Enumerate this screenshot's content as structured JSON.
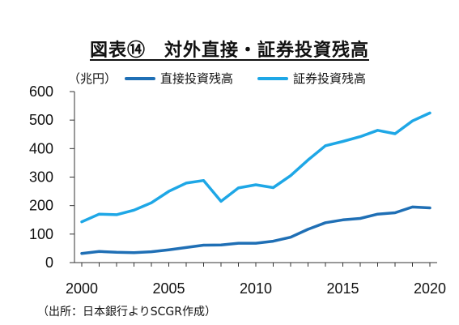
{
  "chart_data": {
    "type": "line",
    "title": "図表⑭　対外直接・証券投資残高",
    "unit_label": "（兆円）",
    "source": "（出所：日本銀行よりSCGR作成）",
    "ylim": [
      0,
      600
    ],
    "y_ticks": [
      "0",
      "100",
      "200",
      "300",
      "400",
      "500",
      "600"
    ],
    "x_ticks": [
      "2000",
      "2005",
      "2010",
      "2015",
      "2020"
    ],
    "x": [
      2000,
      2001,
      2002,
      2003,
      2004,
      2005,
      2006,
      2007,
      2008,
      2009,
      2010,
      2011,
      2012,
      2013,
      2014,
      2015,
      2016,
      2017,
      2018,
      2019,
      2020
    ],
    "legend_position": "top",
    "grid": false,
    "series": [
      {
        "name": "直接投資残高",
        "color": "#1f6fb5",
        "values": [
          32,
          39,
          36,
          35,
          38,
          45,
          53,
          61,
          62,
          68,
          68,
          75,
          89,
          117,
          140,
          150,
          155,
          170,
          175,
          195,
          192
        ]
      },
      {
        "name": "証券投資残高",
        "color": "#1ea7e6",
        "values": [
          143,
          170,
          168,
          184,
          210,
          250,
          279,
          288,
          215,
          262,
          273,
          263,
          305,
          360,
          410,
          425,
          442,
          464,
          452,
          497,
          525
        ]
      }
    ]
  }
}
